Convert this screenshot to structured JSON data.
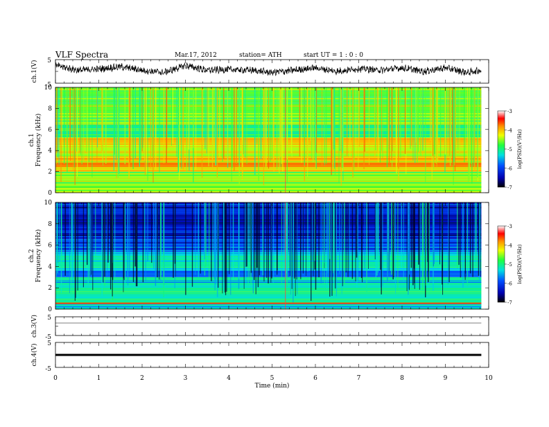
{
  "header": {
    "title": "VLF  Spectra",
    "date": "Mar.17, 2012",
    "station": "station= ATH",
    "start": "start  UT  =   1 : 0  : 0"
  },
  "chart_data": [
    {
      "type": "line",
      "name": "ch1-waveform",
      "ylabel": "ch.1(V)",
      "yticks": [
        "5",
        "-5"
      ],
      "ylim": [
        -5,
        5
      ],
      "xlim": [
        0,
        10
      ],
      "data_end_min": 9.83,
      "description_values": {
        "x": [
          0,
          0.5,
          1,
          1.5,
          2,
          2.5,
          3,
          3.5,
          4,
          4.5,
          5,
          5.5,
          6,
          6.5,
          7,
          7.5,
          8,
          8.5,
          9,
          9.5,
          9.83
        ],
        "y": [
          2.5,
          0.5,
          1,
          2,
          0.5,
          -0.5,
          2.5,
          0.5,
          0.8,
          0.5,
          -0.5,
          0.5,
          1.5,
          0,
          1.2,
          0.5,
          1.5,
          0,
          1.5,
          -0.5,
          0.5
        ]
      }
    },
    {
      "type": "heatmap",
      "name": "ch1-spectrogram",
      "ylabel": "Frequency  (kHz)",
      "channel_label": "ch.1",
      "yticks": [
        "0",
        "2",
        "4",
        "6",
        "8",
        "10"
      ],
      "ylim": [
        0,
        10
      ],
      "xlim": [
        0,
        10
      ],
      "data_end_min": 9.83,
      "z_unit": "log(PSD)(V²/Hz)",
      "zlim": [
        -7,
        -3
      ],
      "approx_level_by_band": [
        {
          "f": [
            0,
            0.5
          ],
          "z": -4.5
        },
        {
          "f": [
            0.5,
            2
          ],
          "z": -4.6
        },
        {
          "f": [
            2,
            3.5
          ],
          "z": -4.0
        },
        {
          "f": [
            3.5,
            4.5
          ],
          "z": -4.4
        },
        {
          "f": [
            4.5,
            5.2
          ],
          "z": -3.9
        },
        {
          "f": [
            5.2,
            6.5
          ],
          "z": -5.0
        },
        {
          "f": [
            6.5,
            10
          ],
          "z": -4.6
        }
      ]
    },
    {
      "type": "heatmap",
      "name": "ch2-spectrogram",
      "ylabel": "Frequency  (kHz)",
      "channel_label": "ch.2",
      "yticks": [
        "0",
        "2",
        "4",
        "6",
        "8",
        "10"
      ],
      "ylim": [
        0,
        10
      ],
      "xlim": [
        0,
        10
      ],
      "data_end_min": 9.83,
      "z_unit": "log(PSD)(V²/Hz)",
      "zlim": [
        -7,
        -3
      ],
      "approx_level_by_band": [
        {
          "f": [
            0,
            0.6
          ],
          "z": -5.4
        },
        {
          "f": [
            0.6,
            3
          ],
          "z": -5.2
        },
        {
          "f": [
            3,
            3.6
          ],
          "z": -5.9
        },
        {
          "f": [
            3.6,
            5.4
          ],
          "z": -5.3
        },
        {
          "f": [
            5.4,
            6.6
          ],
          "z": -6.0
        },
        {
          "f": [
            6.6,
            10
          ],
          "z": -6.3
        }
      ]
    },
    {
      "type": "line",
      "name": "ch3-waveform",
      "ylabel": "ch.3(V)",
      "yticks": [
        "5",
        "-5"
      ],
      "ylim": [
        -5,
        5
      ],
      "xlim": [
        0,
        10
      ],
      "data_end_min": 9.83,
      "level": 0
    },
    {
      "type": "line",
      "name": "ch4-waveform",
      "ylabel": "ch.4(V)",
      "yticks": [
        "5",
        "-5"
      ],
      "ylim": [
        -5,
        5
      ],
      "xlim": [
        0,
        10
      ],
      "data_end_min": 9.83,
      "level": 0
    }
  ],
  "xaxis": {
    "label": "Time  (min)",
    "ticks": [
      "0",
      "1",
      "2",
      "3",
      "4",
      "5",
      "6",
      "7",
      "8",
      "9",
      "10"
    ]
  },
  "colorbar": {
    "ticks": [
      "-3",
      "-4",
      "-5",
      "-6",
      "-7"
    ],
    "label": "log(PSD)(V²/Hz)"
  }
}
